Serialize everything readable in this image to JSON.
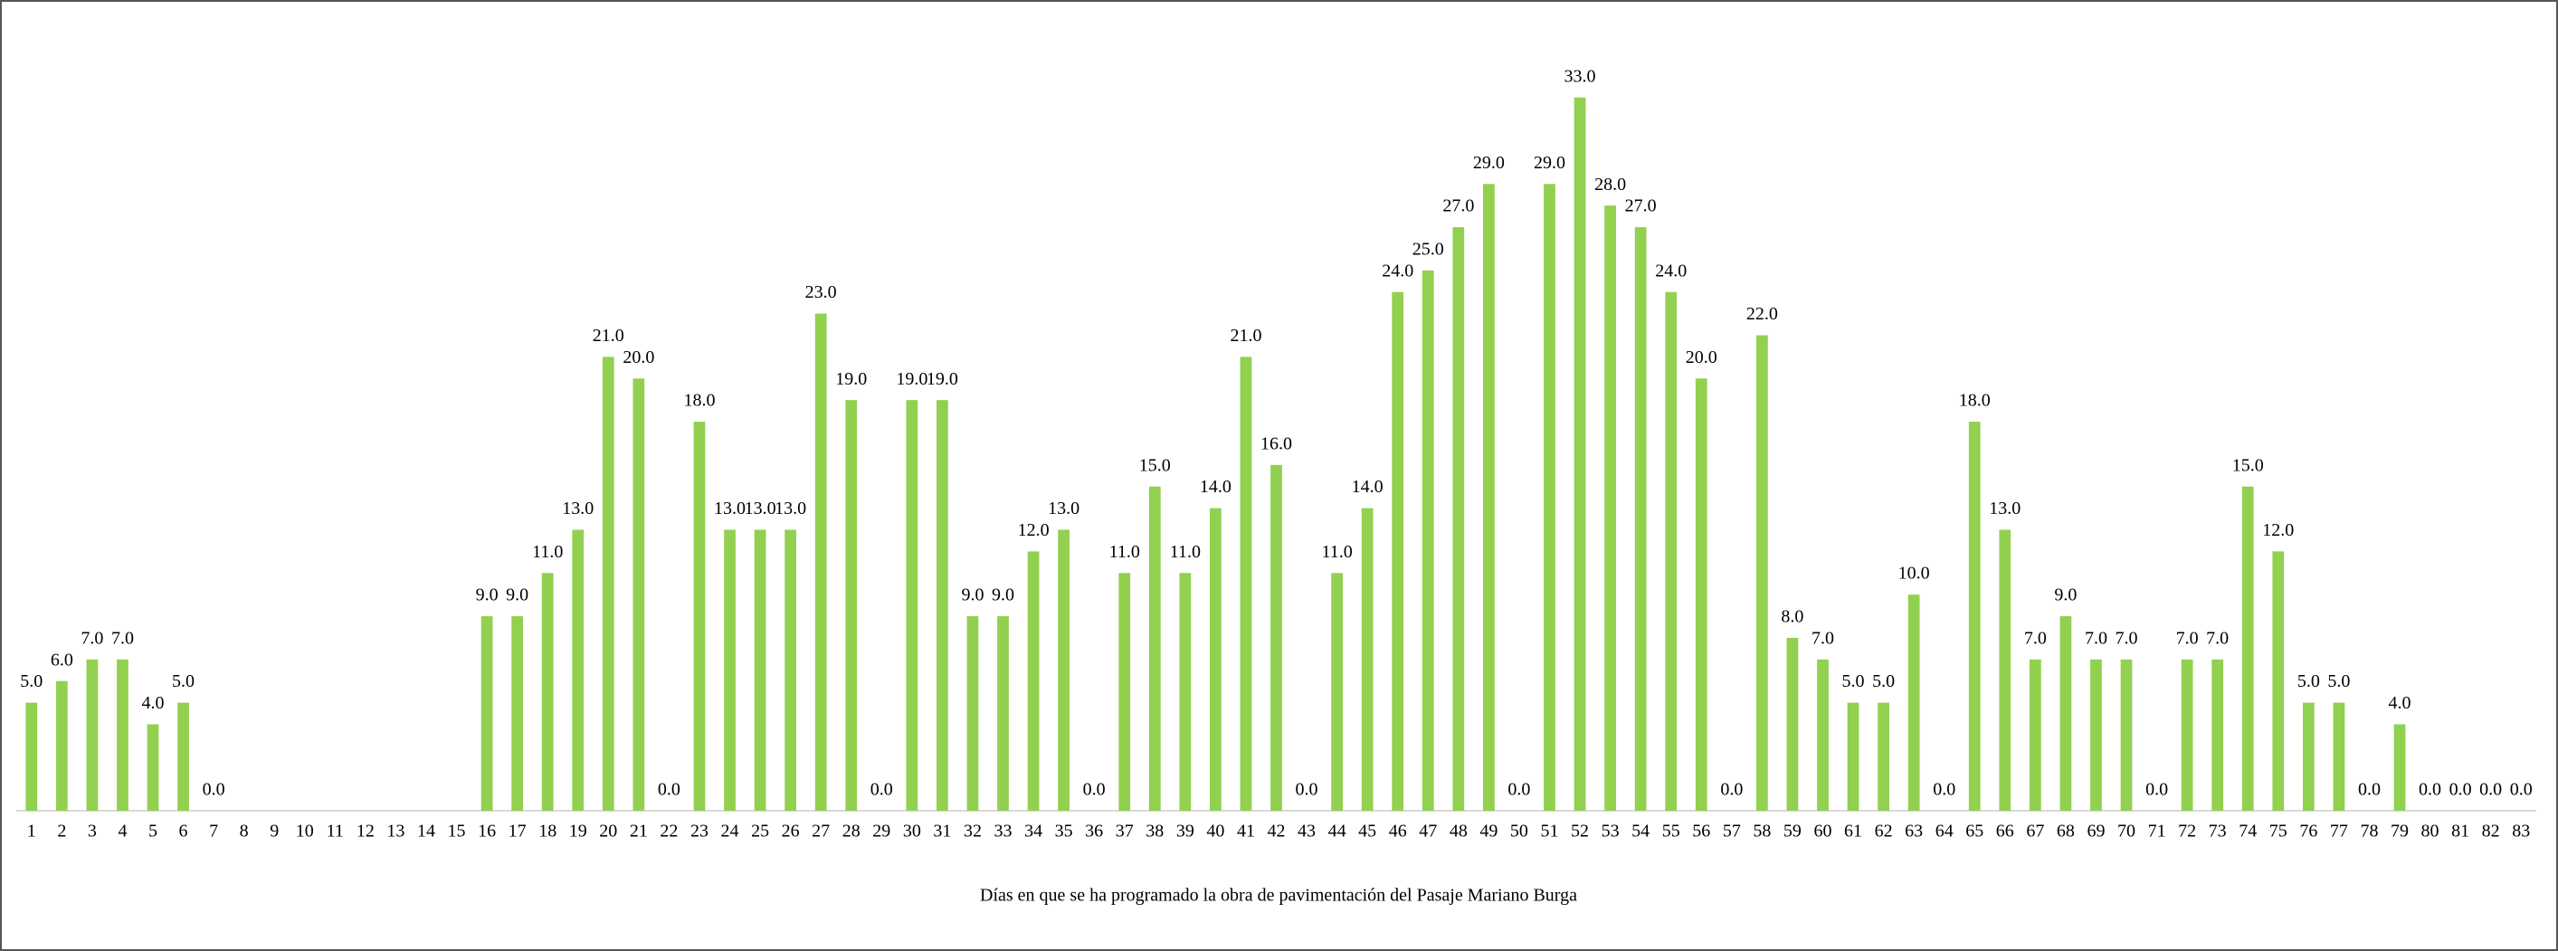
{
  "chart_data": {
    "type": "bar",
    "x_label": "Días en que se ha programado la obra de pavimentación del Pasaje Mariano Burga",
    "categories": [
      "1",
      "2",
      "3",
      "4",
      "5",
      "6",
      "7",
      "8",
      "9",
      "10",
      "11",
      "12",
      "13",
      "14",
      "15",
      "16",
      "17",
      "18",
      "19",
      "20",
      "21",
      "22",
      "23",
      "24",
      "25",
      "26",
      "27",
      "28",
      "29",
      "30",
      "31",
      "32",
      "33",
      "34",
      "35",
      "36",
      "37",
      "38",
      "39",
      "40",
      "41",
      "42",
      "43",
      "44",
      "45",
      "46",
      "47",
      "48",
      "49",
      "50",
      "51",
      "52",
      "53",
      "54",
      "55",
      "56",
      "57",
      "58",
      "59",
      "60",
      "61",
      "62",
      "63",
      "64",
      "65",
      "66",
      "67",
      "68",
      "69",
      "70",
      "71",
      "72",
      "73",
      "74",
      "75",
      "76",
      "77",
      "78",
      "79",
      "80",
      "81",
      "82",
      "83"
    ],
    "values": [
      5,
      6,
      7,
      7,
      4,
      5,
      0,
      null,
      null,
      null,
      null,
      null,
      null,
      null,
      null,
      9,
      9,
      11,
      13,
      21,
      20,
      0,
      18,
      13,
      13,
      13,
      23,
      19,
      0,
      19,
      19,
      9,
      9,
      12,
      13,
      0,
      11,
      15,
      11,
      14,
      21,
      16,
      0,
      11,
      14,
      24,
      25,
      27,
      29,
      0,
      29,
      33,
      28,
      27,
      24,
      20,
      0,
      22,
      8,
      7,
      5,
      5,
      10,
      0,
      18,
      13,
      7,
      9,
      7,
      7,
      0,
      7,
      7,
      15,
      12,
      5,
      5,
      0,
      4,
      0,
      0,
      0,
      0
    ],
    "value_labels": [
      "5.0",
      "6.0",
      "7.0",
      "7.0",
      "4.0",
      "5.0",
      "0.0",
      null,
      null,
      null,
      null,
      null,
      null,
      null,
      null,
      "9.0",
      "9.0",
      "11.0",
      "13.0",
      "21.0",
      "20.0",
      "0.0",
      "18.0",
      "13.0",
      "13.0",
      "13.0",
      "23.0",
      "19.0",
      "0.0",
      "19.0",
      "19.0",
      "9.0",
      "9.0",
      "12.0",
      "13.0",
      "0.0",
      "11.0",
      "15.0",
      "11.0",
      "14.0",
      "21.0",
      "16.0",
      "0.0",
      "11.0",
      "14.0",
      "24.0",
      "25.0",
      "27.0",
      "29.0",
      "0.0",
      "29.0",
      "33.0",
      "28.0",
      "27.0",
      "24.0",
      "20.0",
      "0.0",
      "22.0",
      "8.0",
      "7.0",
      "5.0",
      "5.0",
      "10.0",
      "0.0",
      "18.0",
      "13.0",
      "7.0",
      "9.0",
      "7.0",
      "7.0",
      "0.0",
      "7.0",
      "7.0",
      "15.0",
      "12.0",
      "5.0",
      "5.0",
      "0.0",
      "4.0",
      "0.0",
      "0.0",
      "0.0",
      "0.0"
    ],
    "color": "#92d050",
    "ylim": [
      0,
      35
    ]
  }
}
